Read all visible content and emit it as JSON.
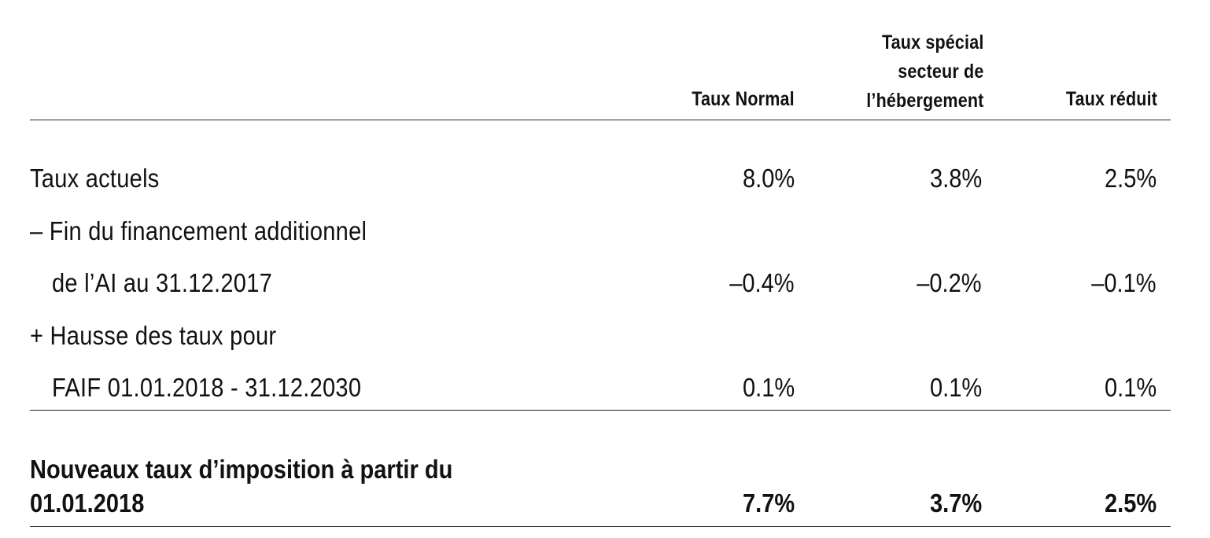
{
  "header": {
    "col1": [
      "Taux Normal"
    ],
    "col2": [
      "Taux spécial",
      "secteur de",
      "l’hébergement"
    ],
    "col3": [
      "Taux réduit"
    ]
  },
  "rows": [
    {
      "label": "Taux actuels",
      "values": [
        "8.0%",
        "3.8%",
        "2.5%"
      ]
    },
    {
      "label": "– Fin du financement additionnel"
    },
    {
      "label": "de l’AI au 31.12.2017",
      "values": [
        "–0.4%",
        "–0.2%",
        "–0.1%"
      ]
    },
    {
      "label": "+ Hausse des taux pour"
    },
    {
      "label": "FAIF 01.01.2018 - 31.12.2030",
      "values": [
        "0.1%",
        "0.1%",
        "0.1%"
      ]
    }
  ],
  "total": {
    "label_line1": "Nouveaux taux d’imposition à partir du",
    "label_line2": "01.01.2018",
    "values": [
      "7.7%",
      "3.7%",
      "2.5%"
    ]
  }
}
